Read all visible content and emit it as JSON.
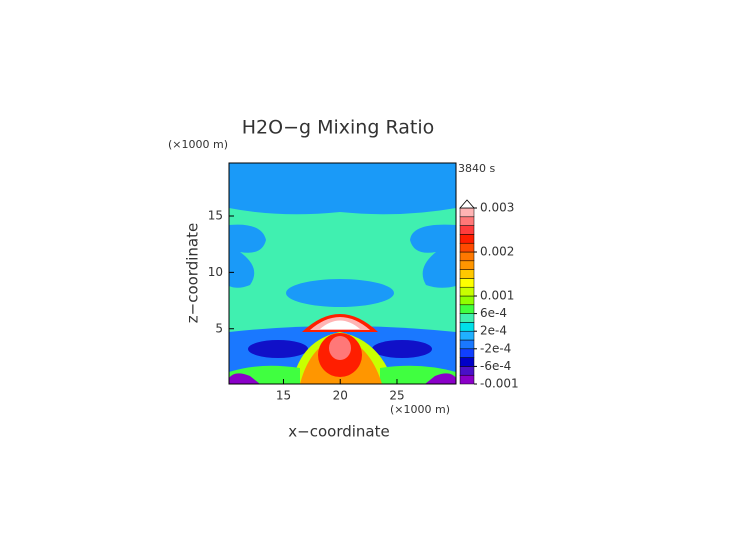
{
  "chart_data": {
    "type": "contour",
    "title": "H2O−g Mixing Ratio",
    "time_label": "3840 s",
    "x_label": "x−coordinate",
    "y_label": "z−coordinate",
    "x_unit": "(×1000 m)",
    "y_unit": "(×1000 m)",
    "xlim": [
      10.2,
      30.2
    ],
    "ylim": [
      0.1,
      19.7
    ],
    "xticks": [
      15,
      20,
      25
    ],
    "yticks": [
      5,
      10,
      15
    ],
    "colorbar": {
      "levels": [
        -0.001,
        -0.0008,
        -0.0006,
        -0.0004,
        -0.0002,
        0,
        0.0002,
        0.0004,
        0.0006,
        0.0008,
        0.001,
        0.0012,
        0.0014,
        0.0016,
        0.0018,
        0.002,
        0.0022,
        0.0024,
        0.0026,
        0.0028,
        0.003
      ],
      "colors": [
        "#8a00c8",
        "#4a10c8",
        "#0000c8",
        "#1040ff",
        "#1a78ff",
        "#20b0ff",
        "#00e0e8",
        "#40f0b0",
        "#40ff40",
        "#90ff00",
        "#c8ff00",
        "#ffff00",
        "#ffc800",
        "#ff9600",
        "#ff7800",
        "#ff4a00",
        "#ff1e00",
        "#ff3c3c",
        "#ff7878",
        "#ffb4b4"
      ],
      "ticks": [
        -0.001,
        {
          "value": -0.0006,
          "label": "-6e-4"
        },
        {
          "value": -0.0002,
          "label": "-2e-4"
        },
        {
          "value": 0.0002,
          "label": "2e-4"
        },
        {
          "value": 0.0006,
          "label": "6e-4"
        },
        0.001,
        0.002,
        0.003
      ]
    }
  }
}
